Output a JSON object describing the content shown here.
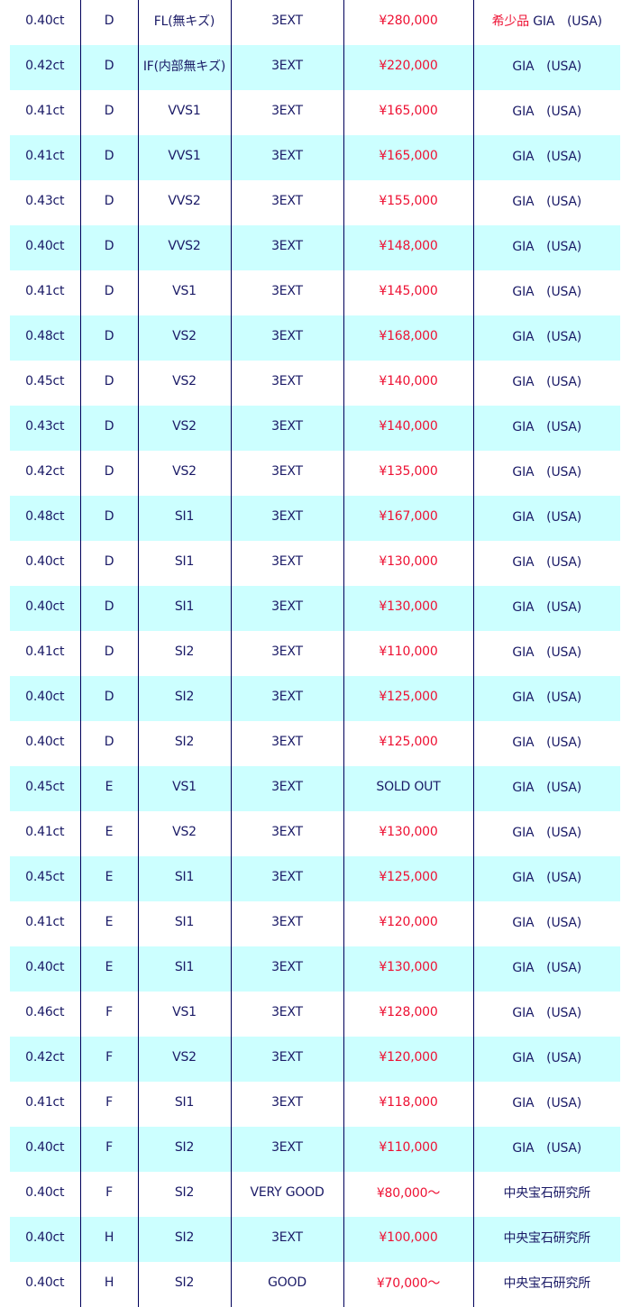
{
  "colors": {
    "text": "#1a1a66",
    "price": "#ee1133",
    "row_alt": "#ccffff",
    "border": "#00005a"
  },
  "rows": [
    {
      "carat": "0.40ct",
      "color": "D",
      "clarity": "FL(無キズ)",
      "cut": "3EXT",
      "price": "¥280,000",
      "note": "希少品",
      "lab": "GIA　(USA)"
    },
    {
      "carat": "0.42ct",
      "color": "D",
      "clarity": "IF(内部無キズ)",
      "cut": "3EXT",
      "price": "¥220,000",
      "lab": "GIA　(USA)"
    },
    {
      "carat": "0.41ct",
      "color": "D",
      "clarity": "VVS1",
      "cut": "3EXT",
      "price": "¥165,000",
      "lab": "GIA　(USA)"
    },
    {
      "carat": "0.41ct",
      "color": "D",
      "clarity": "VVS1",
      "cut": "3EXT",
      "price": "¥165,000",
      "lab": "GIA　(USA)"
    },
    {
      "carat": "0.43ct",
      "color": "D",
      "clarity": "VVS2",
      "cut": "3EXT",
      "price": "¥155,000",
      "lab": "GIA　(USA)"
    },
    {
      "carat": "0.40ct",
      "color": "D",
      "clarity": "VVS2",
      "cut": "3EXT",
      "price": "¥148,000",
      "lab": "GIA　(USA)"
    },
    {
      "carat": "0.41ct",
      "color": "D",
      "clarity": "VS1",
      "cut": "3EXT",
      "price": "¥145,000",
      "lab": "GIA　(USA)"
    },
    {
      "carat": "0.48ct",
      "color": "D",
      "clarity": "VS2",
      "cut": "3EXT",
      "price": "¥168,000",
      "lab": "GIA　(USA)"
    },
    {
      "carat": "0.45ct",
      "color": "D",
      "clarity": "VS2",
      "cut": "3EXT",
      "price": "¥140,000",
      "lab": "GIA　(USA)"
    },
    {
      "carat": "0.43ct",
      "color": "D",
      "clarity": "VS2",
      "cut": "3EXT",
      "price": "¥140,000",
      "lab": "GIA　(USA)"
    },
    {
      "carat": "0.42ct",
      "color": "D",
      "clarity": "VS2",
      "cut": "3EXT",
      "price": "¥135,000",
      "lab": "GIA　(USA)"
    },
    {
      "carat": "0.48ct",
      "color": "D",
      "clarity": "SI1",
      "cut": "3EXT",
      "price": "¥167,000",
      "lab": "GIA　(USA)"
    },
    {
      "carat": "0.40ct",
      "color": "D",
      "clarity": "SI1",
      "cut": "3EXT",
      "price": "¥130,000",
      "lab": "GIA　(USA)"
    },
    {
      "carat": "0.40ct",
      "color": "D",
      "clarity": "SI1",
      "cut": "3EXT",
      "price": "¥130,000",
      "lab": "GIA　(USA)"
    },
    {
      "carat": "0.41ct",
      "color": "D",
      "clarity": "SI2",
      "cut": "3EXT",
      "price": "¥110,000",
      "lab": "GIA　(USA)"
    },
    {
      "carat": "0.40ct",
      "color": "D",
      "clarity": "SI2",
      "cut": "3EXT",
      "price": "¥125,000",
      "lab": "GIA　(USA)"
    },
    {
      "carat": "0.40ct",
      "color": "D",
      "clarity": "SI2",
      "cut": "3EXT",
      "price": "¥125,000",
      "lab": "GIA　(USA)"
    },
    {
      "carat": "0.45ct",
      "color": "E",
      "clarity": "VS1",
      "cut": "3EXT",
      "price": "SOLD OUT",
      "sold": true,
      "lab": "GIA　(USA)"
    },
    {
      "carat": "0.41ct",
      "color": "E",
      "clarity": "VS2",
      "cut": "3EXT",
      "price": "¥130,000",
      "lab": "GIA　(USA)"
    },
    {
      "carat": "0.45ct",
      "color": "E",
      "clarity": "SI1",
      "cut": "3EXT",
      "price": "¥125,000",
      "lab": "GIA　(USA)"
    },
    {
      "carat": "0.41ct",
      "color": "E",
      "clarity": "SI1",
      "cut": "3EXT",
      "price": "¥120,000",
      "lab": "GIA　(USA)"
    },
    {
      "carat": "0.40ct",
      "color": "E",
      "clarity": "SI1",
      "cut": "3EXT",
      "price": "¥130,000",
      "lab": "GIA　(USA)"
    },
    {
      "carat": "0.46ct",
      "color": "F",
      "clarity": "VS1",
      "cut": "3EXT",
      "price": "¥128,000",
      "lab": "GIA　(USA)"
    },
    {
      "carat": "0.42ct",
      "color": "F",
      "clarity": "VS2",
      "cut": "3EXT",
      "price": "¥120,000",
      "lab": "GIA　(USA)"
    },
    {
      "carat": "0.41ct",
      "color": "F",
      "clarity": "SI1",
      "cut": "3EXT",
      "price": "¥118,000",
      "lab": "GIA　(USA)"
    },
    {
      "carat": "0.40ct",
      "color": "F",
      "clarity": "SI2",
      "cut": "3EXT",
      "price": "¥110,000",
      "lab": "GIA　(USA)"
    },
    {
      "carat": "0.40ct",
      "color": "F",
      "clarity": "SI2",
      "cut": "VERY GOOD",
      "price": "¥80,000～",
      "lab": "中央宝石研究所"
    },
    {
      "carat": "0.40ct",
      "color": "H",
      "clarity": "SI2",
      "cut": "3EXT",
      "price": "¥100,000",
      "lab": "中央宝石研究所"
    },
    {
      "carat": "0.40ct",
      "color": "H",
      "clarity": "SI2",
      "cut": "GOOD",
      "price": "¥70,000～",
      "lab": "中央宝石研究所"
    }
  ]
}
